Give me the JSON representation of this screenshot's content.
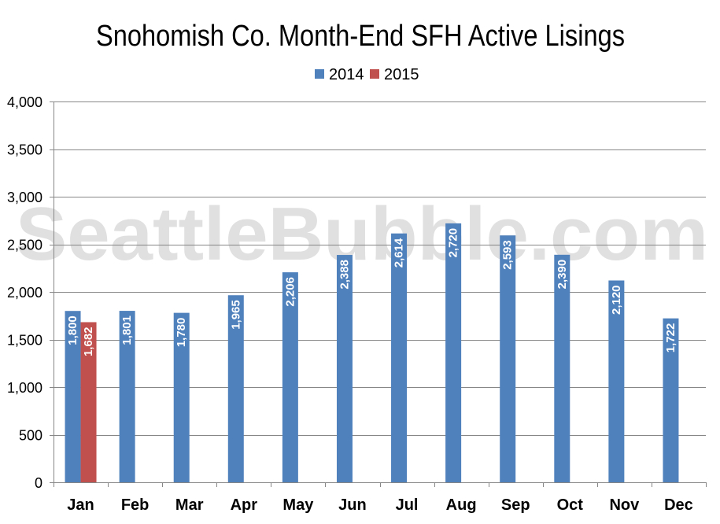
{
  "chart_data": {
    "type": "bar",
    "title": "Snohomish Co. Month-End SFH Active Lisings",
    "xlabel": "",
    "ylabel": "",
    "categories": [
      "Jan",
      "Feb",
      "Mar",
      "Apr",
      "May",
      "Jun",
      "Jul",
      "Aug",
      "Sep",
      "Oct",
      "Nov",
      "Dec"
    ],
    "series": [
      {
        "name": "2014",
        "color": "#4f81bd",
        "values": [
          1800,
          1801,
          1780,
          1965,
          2206,
          2388,
          2614,
          2720,
          2593,
          2390,
          2120,
          1722
        ]
      },
      {
        "name": "2015",
        "color": "#c0504d",
        "values": [
          1682,
          null,
          null,
          null,
          null,
          null,
          null,
          null,
          null,
          null,
          null,
          null
        ]
      }
    ],
    "value_labels": [
      [
        "1,800",
        "1,801",
        "1,780",
        "1,965",
        "2,206",
        "2,388",
        "2,614",
        "2,720",
        "2,593",
        "2,390",
        "2,120",
        "1,722"
      ],
      [
        "1,682",
        "",
        "",
        "",
        "",
        "",
        "",
        "",
        "",
        "",
        "",
        ""
      ]
    ],
    "ylim": [
      0,
      4000
    ],
    "yticks": [
      0,
      500,
      1000,
      1500,
      2000,
      2500,
      3000,
      3500,
      4000
    ],
    "ytick_labels": [
      "0",
      "500",
      "1,000",
      "1,500",
      "2,000",
      "2,500",
      "3,000",
      "3,500",
      "4,000"
    ],
    "grid": true,
    "legend_position": "top-center"
  },
  "watermark": "SeattleBubble.com"
}
